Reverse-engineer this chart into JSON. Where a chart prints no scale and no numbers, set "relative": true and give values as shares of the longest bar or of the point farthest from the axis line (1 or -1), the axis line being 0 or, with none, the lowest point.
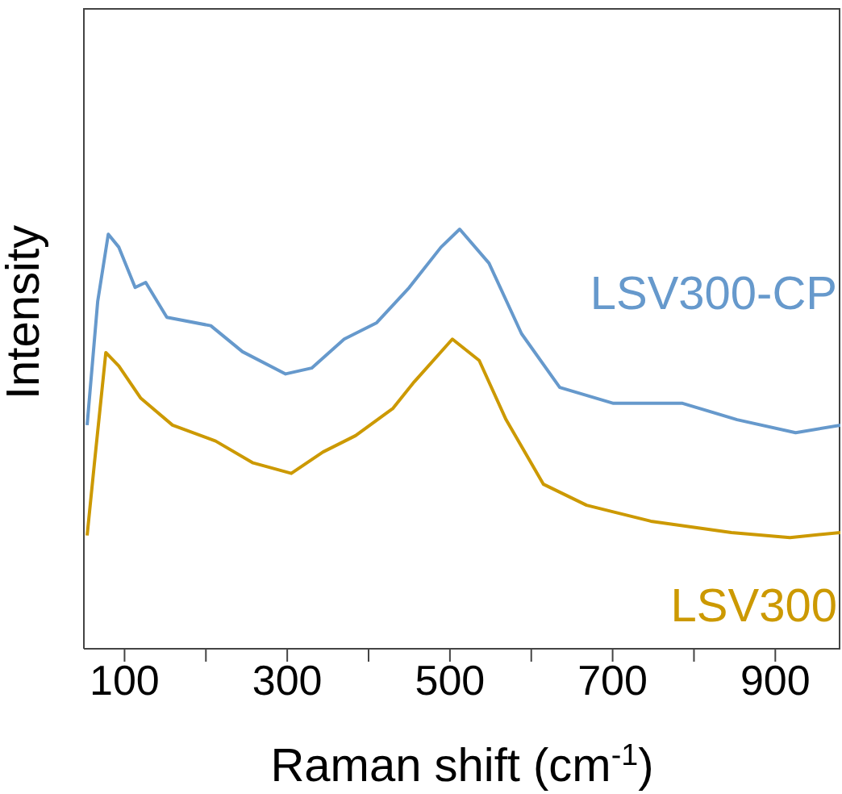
{
  "chart_data": {
    "type": "line",
    "relative": true,
    "xlabel": "Raman shift (cm$^{-1}$)",
    "ylabel": "Intensity",
    "xlim": [
      50,
      980
    ],
    "xticks": [
      100,
      {
        "value": 200,
        "label": null
      },
      300,
      {
        "value": 400,
        "label": null
      },
      500,
      {
        "value": 600,
        "label": null
      },
      700,
      {
        "value": 800,
        "label": null
      },
      900
    ],
    "tick_labels": "x",
    "marker": "none",
    "line_style": "solid",
    "series": [
      {
        "name": "LSV300-CP",
        "color": "#6699cc",
        "x": [
          54,
          67,
          80,
          93,
          113,
          126,
          152,
          206,
          245,
          298,
          330,
          370,
          410,
          450,
          489,
          512,
          548,
          588,
          635,
          701,
          786,
          853,
          925,
          980
        ],
        "values": [
          0.533,
          0.828,
          0.988,
          0.957,
          0.861,
          0.873,
          0.79,
          0.77,
          0.708,
          0.655,
          0.669,
          0.738,
          0.777,
          0.861,
          0.957,
          1,
          0.919,
          0.751,
          0.623,
          0.585,
          0.585,
          0.546,
          0.515,
          0.533
        ]
      },
      {
        "name": "LSV300",
        "color": "#cc9900",
        "x": [
          54,
          63,
          77,
          93,
          120,
          159,
          212,
          258,
          305,
          344,
          384,
          430,
          456,
          503,
          536,
          569,
          615,
          668,
          747,
          846,
          918,
          980
        ],
        "values": [
          0.27,
          0.443,
          0.706,
          0.674,
          0.597,
          0.533,
          0.495,
          0.443,
          0.418,
          0.469,
          0.508,
          0.573,
          0.636,
          0.738,
          0.687,
          0.546,
          0.392,
          0.342,
          0.304,
          0.277,
          0.265,
          0.277
        ]
      }
    ]
  }
}
